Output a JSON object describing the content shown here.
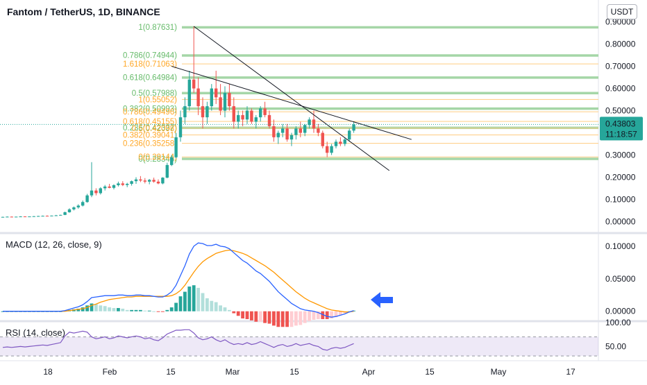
{
  "header": {
    "title": "Fantom / TetherUS, 1D, BINANCE",
    "currency_button": "USDT"
  },
  "colors": {
    "up": "#26a69a",
    "down": "#ef5350",
    "macd": "#2962ff",
    "signal": "#ff9800",
    "rsi": "#7e57c2",
    "fib_green": "#a5d6a7",
    "fib_orange": "#ffcc80",
    "fib_label_green": "#66bb6a",
    "fib_label_orange": "#ffa726",
    "price_tag": "#26a69a",
    "arrow": "#2962ff"
  },
  "price_tag": {
    "price": "0.43803",
    "countdown": "11:18:57"
  },
  "chart_data": [
    {
      "type": "candlestick",
      "name": "price",
      "title": "Fantom / TetherUS, 1D, BINANCE",
      "x_ticks": [
        "18",
        "Feb",
        "15",
        "Mar",
        "15",
        "Apr",
        "15",
        "May",
        "17"
      ],
      "y_ticks": [
        "0.90000",
        "0.80000",
        "0.70000",
        "0.60000",
        "0.50000",
        "0.40000",
        "0.30000",
        "0.20000",
        "0.10000",
        "0.00000"
      ],
      "ylim": [
        -0.03,
        0.98
      ],
      "ohlc": [
        [
          0.021,
          0.022,
          0.02,
          0.021
        ],
        [
          0.021,
          0.023,
          0.02,
          0.022
        ],
        [
          0.022,
          0.023,
          0.021,
          0.021
        ],
        [
          0.021,
          0.022,
          0.02,
          0.022
        ],
        [
          0.022,
          0.024,
          0.021,
          0.023
        ],
        [
          0.023,
          0.024,
          0.022,
          0.022
        ],
        [
          0.022,
          0.023,
          0.021,
          0.023
        ],
        [
          0.023,
          0.025,
          0.022,
          0.024
        ],
        [
          0.024,
          0.026,
          0.023,
          0.025
        ],
        [
          0.025,
          0.027,
          0.024,
          0.026
        ],
        [
          0.026,
          0.028,
          0.025,
          0.025
        ],
        [
          0.025,
          0.027,
          0.024,
          0.027
        ],
        [
          0.027,
          0.03,
          0.026,
          0.028
        ],
        [
          0.028,
          0.031,
          0.027,
          0.03
        ],
        [
          0.03,
          0.045,
          0.029,
          0.042
        ],
        [
          0.042,
          0.06,
          0.04,
          0.055
        ],
        [
          0.055,
          0.068,
          0.05,
          0.064
        ],
        [
          0.064,
          0.078,
          0.058,
          0.072
        ],
        [
          0.072,
          0.095,
          0.068,
          0.088
        ],
        [
          0.088,
          0.125,
          0.085,
          0.118
        ],
        [
          0.118,
          0.268,
          0.11,
          0.14
        ],
        [
          0.14,
          0.15,
          0.118,
          0.128
        ],
        [
          0.128,
          0.155,
          0.122,
          0.15
        ],
        [
          0.15,
          0.165,
          0.14,
          0.158
        ],
        [
          0.158,
          0.17,
          0.15,
          0.152
        ],
        [
          0.152,
          0.168,
          0.145,
          0.164
        ],
        [
          0.164,
          0.18,
          0.158,
          0.172
        ],
        [
          0.172,
          0.182,
          0.16,
          0.165
        ],
        [
          0.165,
          0.175,
          0.155,
          0.17
        ],
        [
          0.17,
          0.185,
          0.162,
          0.182
        ],
        [
          0.182,
          0.2,
          0.17,
          0.19
        ],
        [
          0.19,
          0.205,
          0.178,
          0.185
        ],
        [
          0.185,
          0.196,
          0.172,
          0.18
        ],
        [
          0.18,
          0.192,
          0.168,
          0.188
        ],
        [
          0.188,
          0.198,
          0.175,
          0.18
        ],
        [
          0.18,
          0.19,
          0.168,
          0.172
        ],
        [
          0.172,
          0.2,
          0.168,
          0.198
        ],
        [
          0.198,
          0.265,
          0.195,
          0.255
        ],
        [
          0.255,
          0.3,
          0.25,
          0.29
        ],
        [
          0.29,
          0.4,
          0.285,
          0.38
        ],
        [
          0.38,
          0.5,
          0.36,
          0.47
        ],
        [
          0.47,
          0.56,
          0.44,
          0.52
        ],
        [
          0.52,
          0.68,
          0.5,
          0.64
        ],
        [
          0.64,
          0.88,
          0.58,
          0.6
        ],
        [
          0.6,
          0.65,
          0.48,
          0.52
        ],
        [
          0.52,
          0.56,
          0.42,
          0.47
        ],
        [
          0.47,
          0.54,
          0.44,
          0.52
        ],
        [
          0.52,
          0.62,
          0.5,
          0.6
        ],
        [
          0.6,
          0.68,
          0.53,
          0.56
        ],
        [
          0.56,
          0.62,
          0.48,
          0.5
        ],
        [
          0.5,
          0.61,
          0.47,
          0.58
        ],
        [
          0.58,
          0.62,
          0.5,
          0.52
        ],
        [
          0.52,
          0.56,
          0.42,
          0.45
        ],
        [
          0.45,
          0.5,
          0.42,
          0.48
        ],
        [
          0.48,
          0.5,
          0.43,
          0.46
        ],
        [
          0.46,
          0.52,
          0.44,
          0.5
        ],
        [
          0.5,
          0.51,
          0.44,
          0.45
        ],
        [
          0.45,
          0.48,
          0.42,
          0.47
        ],
        [
          0.47,
          0.52,
          0.45,
          0.51
        ],
        [
          0.51,
          0.54,
          0.47,
          0.48
        ],
        [
          0.48,
          0.5,
          0.42,
          0.43
        ],
        [
          0.43,
          0.46,
          0.36,
          0.38
        ],
        [
          0.38,
          0.41,
          0.35,
          0.4
        ],
        [
          0.4,
          0.44,
          0.38,
          0.42
        ],
        [
          0.42,
          0.44,
          0.36,
          0.37
        ],
        [
          0.37,
          0.4,
          0.34,
          0.39
        ],
        [
          0.39,
          0.43,
          0.37,
          0.42
        ],
        [
          0.42,
          0.45,
          0.38,
          0.4
        ],
        [
          0.4,
          0.44,
          0.385,
          0.435
        ],
        [
          0.435,
          0.47,
          0.42,
          0.46
        ],
        [
          0.46,
          0.5,
          0.4,
          0.42
        ],
        [
          0.42,
          0.44,
          0.385,
          0.4
        ],
        [
          0.4,
          0.41,
          0.33,
          0.34
        ],
        [
          0.34,
          0.36,
          0.29,
          0.31
        ],
        [
          0.31,
          0.35,
          0.3,
          0.34
        ],
        [
          0.34,
          0.37,
          0.33,
          0.36
        ],
        [
          0.36,
          0.38,
          0.34,
          0.35
        ],
        [
          0.35,
          0.38,
          0.34,
          0.37
        ],
        [
          0.37,
          0.42,
          0.36,
          0.41
        ],
        [
          0.41,
          0.45,
          0.4,
          0.438
        ]
      ],
      "fib_levels": [
        {
          "label": "1(0.87631)",
          "value": 0.87631,
          "set": "green"
        },
        {
          "label": "0.786(0.74944)",
          "value": 0.74944,
          "set": "green"
        },
        {
          "label": "0.618(0.64984)",
          "value": 0.64984,
          "set": "green"
        },
        {
          "label": "0.5(0.57988)",
          "value": 0.57988,
          "set": "green"
        },
        {
          "label": "0.382(0.50993)",
          "value": 0.50993,
          "set": "green"
        },
        {
          "label": "0.236(0.42337)",
          "value": 0.42337,
          "set": "green"
        },
        {
          "label": "0(0.28346)",
          "value": 0.28346,
          "set": "green"
        },
        {
          "label": "1.618(0.71063)",
          "value": 0.71063,
          "set": "orange"
        },
        {
          "label": "1(0.55052)",
          "value": 0.55052,
          "set": "orange"
        },
        {
          "label": "0.786(0.49496)",
          "value": 0.49496,
          "set": "orange"
        },
        {
          "label": "0.618(0.45155)",
          "value": 0.45155,
          "set": "orange"
        },
        {
          "label": "0.5(0.42098)",
          "value": 0.42098,
          "set": "orange"
        },
        {
          "label": "0.382(0.39041)",
          "value": 0.39041,
          "set": "orange"
        },
        {
          "label": "0.236(0.35258)",
          "value": 0.35258,
          "set": "orange"
        },
        {
          "label": "0(0.29144)",
          "value": 0.29144,
          "set": "orange"
        }
      ],
      "trendlines": [
        {
          "from": [
            43,
            0.88
          ],
          "to": [
            87,
            0.23
          ]
        },
        {
          "from": [
            38,
            0.7
          ],
          "to": [
            92,
            0.37
          ]
        }
      ]
    },
    {
      "type": "line",
      "name": "macd",
      "title": "MACD (12, 26, close, 9)",
      "y_ticks": [
        "0.10000",
        "0.05000",
        "0.00000"
      ],
      "ylim": [
        -0.012,
        0.118
      ],
      "macd": [
        0.0,
        0.0,
        0.0,
        0.0,
        0.0,
        0.0,
        0.0,
        0.0,
        0.0,
        0.0,
        0.0,
        0.0,
        0.0,
        0.0,
        0.001,
        0.003,
        0.005,
        0.007,
        0.01,
        0.015,
        0.021,
        0.022,
        0.023,
        0.024,
        0.024,
        0.024,
        0.025,
        0.025,
        0.024,
        0.024,
        0.025,
        0.025,
        0.024,
        0.024,
        0.023,
        0.022,
        0.022,
        0.025,
        0.03,
        0.04,
        0.055,
        0.07,
        0.088,
        0.1,
        0.105,
        0.104,
        0.101,
        0.101,
        0.103,
        0.1,
        0.099,
        0.096,
        0.09,
        0.084,
        0.078,
        0.074,
        0.068,
        0.062,
        0.058,
        0.052,
        0.046,
        0.038,
        0.03,
        0.024,
        0.018,
        0.012,
        0.008,
        0.004,
        0.002,
        0.001,
        0.0,
        -0.002,
        -0.005,
        -0.008,
        -0.009,
        -0.008,
        -0.006,
        -0.004,
        -0.001,
        0.001
      ],
      "signal": [
        0.0,
        0.0,
        0.0,
        0.0,
        0.0,
        0.0,
        0.0,
        0.0,
        0.0,
        0.0,
        0.0,
        0.0,
        0.0,
        0.0,
        0.0,
        0.001,
        0.002,
        0.003,
        0.004,
        0.006,
        0.009,
        0.011,
        0.014,
        0.016,
        0.018,
        0.019,
        0.02,
        0.021,
        0.022,
        0.022,
        0.023,
        0.023,
        0.023,
        0.023,
        0.023,
        0.023,
        0.023,
        0.023,
        0.024,
        0.027,
        0.032,
        0.04,
        0.05,
        0.06,
        0.069,
        0.076,
        0.081,
        0.085,
        0.089,
        0.091,
        0.093,
        0.094,
        0.093,
        0.091,
        0.089,
        0.086,
        0.082,
        0.078,
        0.074,
        0.07,
        0.065,
        0.06,
        0.054,
        0.048,
        0.042,
        0.036,
        0.03,
        0.025,
        0.02,
        0.016,
        0.013,
        0.01,
        0.007,
        0.004,
        0.002,
        0.001,
        0.0,
        -0.001,
        -0.001,
        0.0
      ]
    },
    {
      "type": "line",
      "name": "rsi",
      "title": "RSI (14, close)",
      "y_ticks": [
        "100.00",
        "50.00"
      ],
      "ylim": [
        20,
        100
      ],
      "bands": [
        30,
        70
      ],
      "values": [
        48,
        49,
        48,
        49,
        50,
        49,
        50,
        51,
        52,
        53,
        52,
        54,
        56,
        58,
        72,
        80,
        78,
        80,
        82,
        80,
        70,
        66,
        68,
        70,
        66,
        68,
        72,
        70,
        68,
        70,
        72,
        70,
        66,
        68,
        64,
        62,
        68,
        76,
        80,
        84,
        84,
        85,
        85,
        78,
        68,
        64,
        66,
        70,
        64,
        60,
        64,
        58,
        54,
        56,
        54,
        58,
        54,
        56,
        60,
        56,
        52,
        48,
        52,
        54,
        50,
        52,
        56,
        52,
        54,
        56,
        52,
        50,
        44,
        42,
        46,
        48,
        46,
        48,
        52,
        56
      ]
    }
  ]
}
